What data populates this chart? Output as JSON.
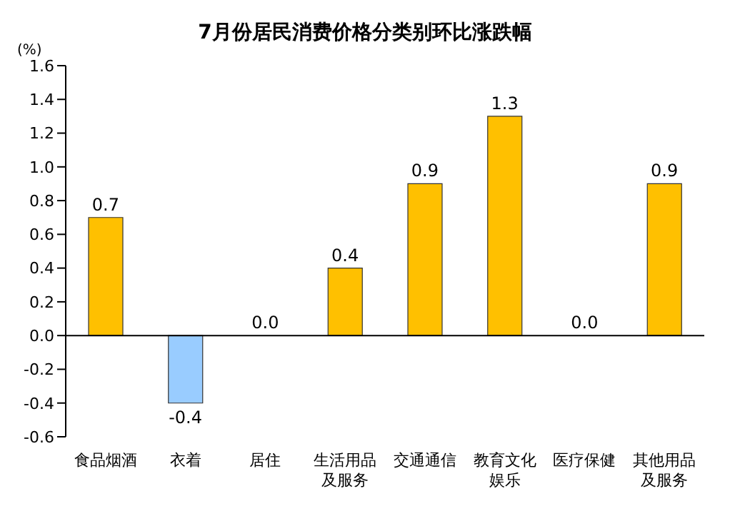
{
  "chart_data": {
    "type": "bar",
    "title": "7月份居民消费价格分类别环比涨跌幅",
    "ylabel": "(%)",
    "categories": [
      "食品烟酒",
      "衣着",
      "居住",
      "生活用品及服务",
      "交通通信",
      "教育文化娱乐",
      "医疗保健",
      "其他用品及服务"
    ],
    "values": [
      0.7,
      -0.4,
      0,
      0.4,
      0.9,
      1.3,
      0,
      0.9
    ],
    "value_labels": [
      "0.7",
      "-0.4",
      "0.0",
      "0.4",
      "0.9",
      "1.3",
      "0.0",
      "0.9"
    ],
    "colors": [
      "#ffc000",
      "#99ccff",
      "#ffc000",
      "#ffc000",
      "#ffc000",
      "#ffc000",
      "#ffc000",
      "#ffc000"
    ],
    "ylim": [
      -0.6,
      1.6
    ],
    "yticks": [
      -0.6,
      -0.4,
      -0.2,
      {
        "value": 0,
        "label": "0.0"
      },
      0.2,
      0.4,
      0.6,
      0.8,
      {
        "value": 1,
        "label": "1.0"
      },
      1.2,
      1.4,
      1.6
    ],
    "legend": false
  }
}
